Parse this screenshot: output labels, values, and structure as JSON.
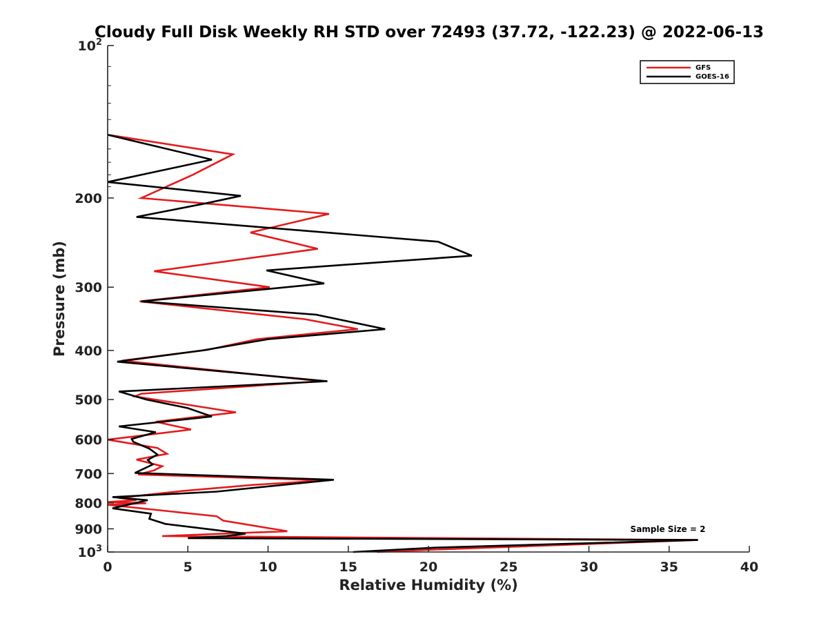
{
  "chart_data": {
    "type": "line",
    "title": "Cloudy Full Disk Weekly RH STD over 72493 (37.72, -122.23) @ 2022-06-13",
    "xlabel": "Relative Humidity (%)",
    "ylabel": "Pressure (mb)",
    "xlim": [
      0,
      40
    ],
    "ylim": [
      100,
      1000
    ],
    "y_scale": "log",
    "y_reversed": true,
    "grid": false,
    "legend_position": "top-right",
    "x_ticks": [
      0,
      5,
      10,
      15,
      20,
      25,
      30,
      35,
      40
    ],
    "y_ticks": [
      {
        "value": 100,
        "label": "10",
        "exponent": "2"
      },
      {
        "value": 200,
        "label": "200"
      },
      {
        "value": 300,
        "label": "300"
      },
      {
        "value": 400,
        "label": "400"
      },
      {
        "value": 500,
        "label": "500"
      },
      {
        "value": 600,
        "label": "600"
      },
      {
        "value": 700,
        "label": "700"
      },
      {
        "value": 800,
        "label": "800"
      },
      {
        "value": 900,
        "label": "900"
      },
      {
        "value": 1000,
        "label": "10",
        "exponent": "3"
      }
    ],
    "annotation": "Sample Size = 2",
    "series": [
      {
        "name": "GFS",
        "color": "#e41a1c",
        "points": [
          [
            0,
            150
          ],
          [
            7.8,
            164
          ],
          [
            5.3,
            180
          ],
          [
            2.1,
            200
          ],
          [
            13.8,
            215
          ],
          [
            8.9,
            234
          ],
          [
            13.1,
            252
          ],
          [
            2.9,
            279
          ],
          [
            10.1,
            300
          ],
          [
            2.0,
            320
          ],
          [
            12.3,
            347
          ],
          [
            15.6,
            363
          ],
          [
            9.3,
            380
          ],
          [
            6.2,
            399
          ],
          [
            0.9,
            419
          ],
          [
            13.3,
            460
          ],
          [
            2.1,
            487
          ],
          [
            1.7,
            493
          ],
          [
            5.0,
            512
          ],
          [
            8.0,
            530
          ],
          [
            3.0,
            553
          ],
          [
            5.2,
            573
          ],
          [
            0,
            600
          ],
          [
            3.1,
            623
          ],
          [
            3.7,
            640
          ],
          [
            1.8,
            657
          ],
          [
            3.4,
            677
          ],
          [
            2.9,
            690
          ],
          [
            1.9,
            703
          ],
          [
            13.6,
            722
          ],
          [
            9.1,
            737
          ],
          [
            4.6,
            758
          ],
          [
            0.7,
            782
          ],
          [
            1.8,
            790
          ],
          [
            0,
            797
          ],
          [
            2.4,
            801
          ],
          [
            0,
            807
          ],
          [
            6.8,
            850
          ],
          [
            7.2,
            867
          ],
          [
            11.2,
            910
          ],
          [
            3.4,
            930
          ],
          [
            36.8,
            947
          ],
          [
            20.0,
            990
          ],
          [
            16.8,
            1000
          ]
        ]
      },
      {
        "name": "GOES-16",
        "color": "#000000",
        "points": [
          [
            0,
            150
          ],
          [
            6.5,
            168
          ],
          [
            0,
            186
          ],
          [
            8.3,
            198
          ],
          [
            6.1,
            205
          ],
          [
            1.8,
            218
          ],
          [
            20.6,
            244
          ],
          [
            22.7,
            260
          ],
          [
            9.9,
            278
          ],
          [
            13.5,
            295
          ],
          [
            2.1,
            320
          ],
          [
            13.0,
            340
          ],
          [
            17.3,
            363
          ],
          [
            10.0,
            380
          ],
          [
            5.9,
            400
          ],
          [
            0.6,
            421
          ],
          [
            13.7,
            460
          ],
          [
            0.7,
            482
          ],
          [
            2.4,
            500
          ],
          [
            5.0,
            520
          ],
          [
            6.5,
            540
          ],
          [
            0.7,
            565
          ],
          [
            3.0,
            580
          ],
          [
            1.5,
            598
          ],
          [
            1.6,
            606
          ],
          [
            2.6,
            625
          ],
          [
            3.1,
            642
          ],
          [
            2.5,
            658
          ],
          [
            2.8,
            672
          ],
          [
            1.7,
            698
          ],
          [
            14.1,
            720
          ],
          [
            6.8,
            760
          ],
          [
            0.3,
            779
          ],
          [
            2.5,
            790
          ],
          [
            0.3,
            820
          ],
          [
            2.7,
            840
          ],
          [
            2.6,
            860
          ],
          [
            3.6,
            880
          ],
          [
            8.6,
            920
          ],
          [
            7.4,
            930
          ],
          [
            5.0,
            939
          ],
          [
            36.8,
            947
          ],
          [
            20.5,
            980
          ],
          [
            15.3,
            1000
          ]
        ]
      }
    ]
  }
}
